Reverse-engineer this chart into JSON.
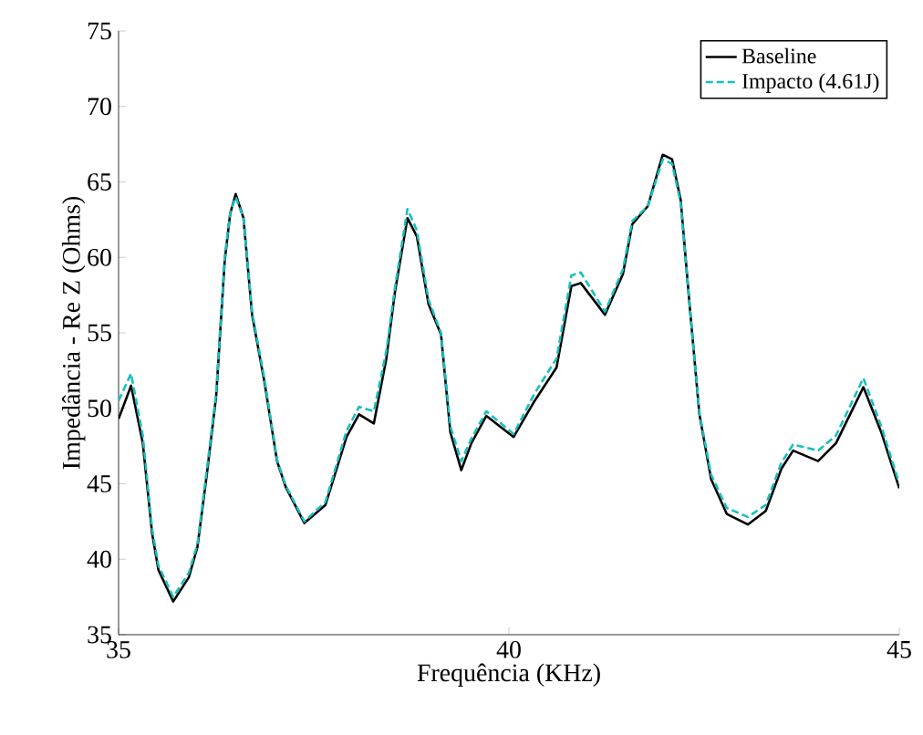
{
  "chart_data": {
    "type": "line",
    "xlabel": "Frequência (KHz)",
    "ylabel": "Impedância - Re Z (Ohms)",
    "xlim": [
      35,
      45
    ],
    "ylim": [
      35,
      75
    ],
    "xticks": [
      35,
      40,
      45
    ],
    "yticks": [
      35,
      40,
      45,
      50,
      55,
      60,
      65,
      70,
      75
    ],
    "legend": "top right",
    "grid": false,
    "series": [
      {
        "name": "Baseline",
        "color": "#000000",
        "line_style": "solid",
        "x": [
          35,
          35.16,
          35.31,
          35.43,
          35.51,
          35.7,
          35.9,
          36.01,
          36.13,
          36.25,
          36.36,
          36.43,
          36.5,
          36.6,
          36.71,
          36.87,
          37.03,
          37.14,
          37.38,
          37.65,
          37.92,
          38.08,
          38.27,
          38.43,
          38.54,
          38.7,
          38.82,
          38.97,
          39.13,
          39.25,
          39.39,
          39.52,
          39.71,
          40.06,
          40.33,
          40.61,
          40.8,
          40.92,
          41.23,
          41.46,
          41.58,
          41.78,
          41.97,
          42.09,
          42.2,
          42.32,
          42.44,
          42.59,
          42.79,
          43.06,
          43.29,
          43.49,
          43.64,
          43.96,
          44.19,
          44.54,
          44.77,
          45
        ],
        "values": [
          49.3,
          51.5,
          47.7,
          41.7,
          39.3,
          37.2,
          38.8,
          40.8,
          45.6,
          50.8,
          59.8,
          62.9,
          64.2,
          62.6,
          56.2,
          51.7,
          46.5,
          44.8,
          42.4,
          43.6,
          48.1,
          49.6,
          49.0,
          53.3,
          57.7,
          62.6,
          61.4,
          56.9,
          54.9,
          48.4,
          45.9,
          47.7,
          49.5,
          48.1,
          50.5,
          52.7,
          58.1,
          58.3,
          56.2,
          58.9,
          62.2,
          63.4,
          66.8,
          66.5,
          63.8,
          56.5,
          49.6,
          45.3,
          43.0,
          42.3,
          43.2,
          46.0,
          47.2,
          46.5,
          47.7,
          51.4,
          48.4,
          44.7
        ]
      },
      {
        "name": "Impacto (4.61J)",
        "color": "#17bfbf",
        "line_style": "dashed",
        "x": [
          35,
          35.16,
          35.31,
          35.43,
          35.51,
          35.7,
          35.9,
          36.01,
          36.13,
          36.25,
          36.36,
          36.43,
          36.5,
          36.6,
          36.71,
          36.87,
          37.03,
          37.14,
          37.38,
          37.65,
          37.92,
          38.08,
          38.27,
          38.43,
          38.54,
          38.7,
          38.82,
          38.97,
          39.13,
          39.25,
          39.39,
          39.52,
          39.71,
          40.06,
          40.33,
          40.61,
          40.8,
          40.92,
          41.23,
          41.46,
          41.58,
          41.78,
          41.97,
          42.09,
          42.2,
          42.32,
          42.44,
          42.59,
          42.79,
          43.06,
          43.29,
          43.49,
          43.64,
          43.96,
          44.19,
          44.54,
          44.77,
          45
        ],
        "values": [
          50.5,
          52.3,
          48.2,
          42.0,
          39.6,
          37.5,
          39.1,
          41.0,
          45.9,
          51.0,
          60.0,
          63.0,
          64.0,
          62.6,
          56.4,
          51.9,
          46.6,
          44.9,
          42.5,
          43.8,
          48.5,
          50.1,
          49.8,
          53.8,
          58.0,
          63.2,
          61.8,
          57.2,
          55.0,
          48.8,
          46.5,
          48.0,
          49.8,
          48.3,
          51.0,
          53.3,
          58.8,
          59.0,
          56.4,
          59.2,
          62.4,
          63.4,
          66.5,
          66.2,
          63.6,
          56.5,
          49.7,
          45.6,
          43.4,
          42.8,
          43.6,
          46.4,
          47.6,
          47.2,
          48.2,
          52.0,
          48.8,
          45.0
        ]
      }
    ]
  }
}
